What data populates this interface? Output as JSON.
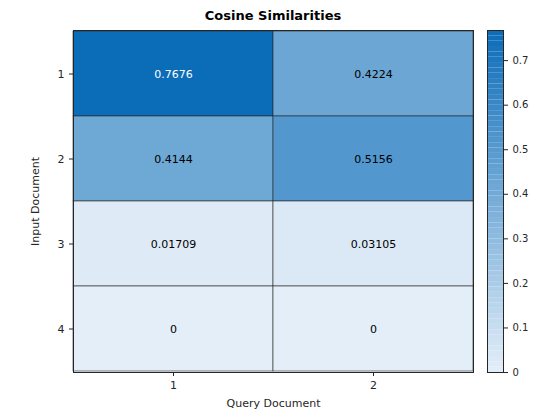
{
  "chart_data": {
    "type": "heatmap",
    "title": "Cosine Similarities",
    "x_label": "Query Document",
    "y_label": "Input Document",
    "x": [
      1,
      2
    ],
    "y": [
      1,
      2,
      3,
      4
    ],
    "values": [
      [
        0.7676,
        0.4224
      ],
      [
        0.4144,
        0.5156
      ],
      [
        0.01709,
        0.03105
      ],
      [
        0,
        0
      ]
    ],
    "data_labels": true,
    "colorbar_lim": [
      0,
      0.7676
    ],
    "colorbar_ticks": [
      0,
      0.1,
      0.2,
      0.3,
      0.4,
      0.5,
      0.6,
      0.7
    ]
  }
}
